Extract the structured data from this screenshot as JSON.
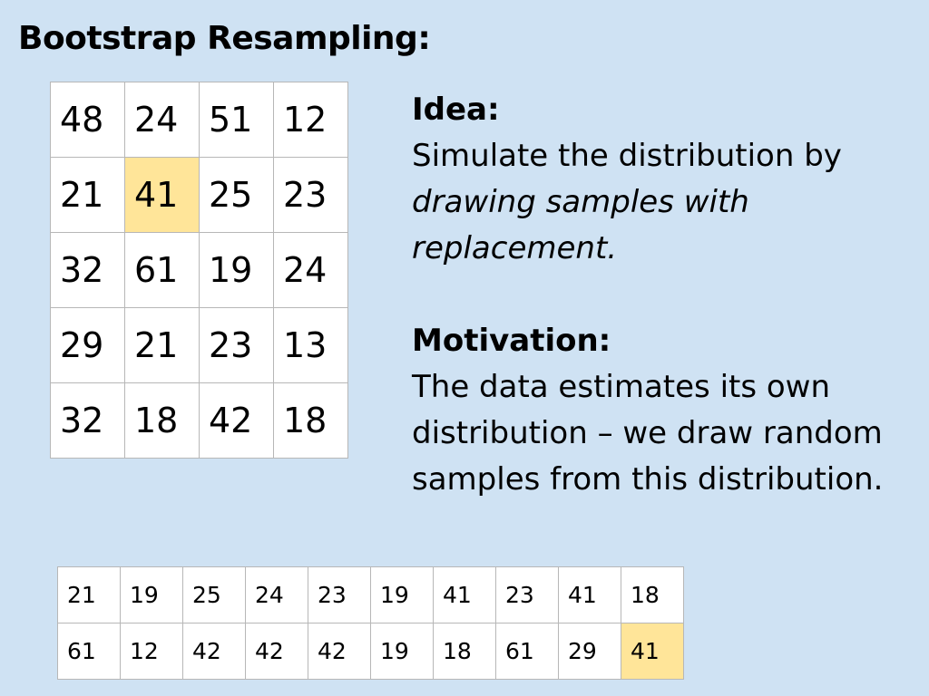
{
  "title": "Bootstrap Resampling:",
  "population_grid": [
    [
      48,
      24,
      51,
      12
    ],
    [
      21,
      41,
      25,
      23
    ],
    [
      32,
      61,
      19,
      24
    ],
    [
      29,
      21,
      23,
      13
    ],
    [
      32,
      18,
      42,
      18
    ]
  ],
  "population_highlight": [
    [
      1,
      1
    ]
  ],
  "idea": {
    "heading": "Idea:",
    "text_before": "Simulate the distribution by ",
    "text_emphasis": "drawing samples with replacement."
  },
  "motivation": {
    "heading": "Motivation:",
    "text": "The data estimates its own distribution – we draw random samples from this distribution."
  },
  "sample_grid": [
    [
      21,
      19,
      25,
      24,
      23,
      19,
      41,
      23,
      41,
      18
    ],
    [
      61,
      12,
      42,
      42,
      42,
      19,
      18,
      61,
      29,
      41
    ]
  ],
  "sample_highlight": [
    [
      1,
      9
    ]
  ],
  "colors": {
    "background": "#cfe2f3",
    "cell_background": "#ffffff",
    "highlight": "#ffe599",
    "cell_border": "#b7b7b7"
  }
}
